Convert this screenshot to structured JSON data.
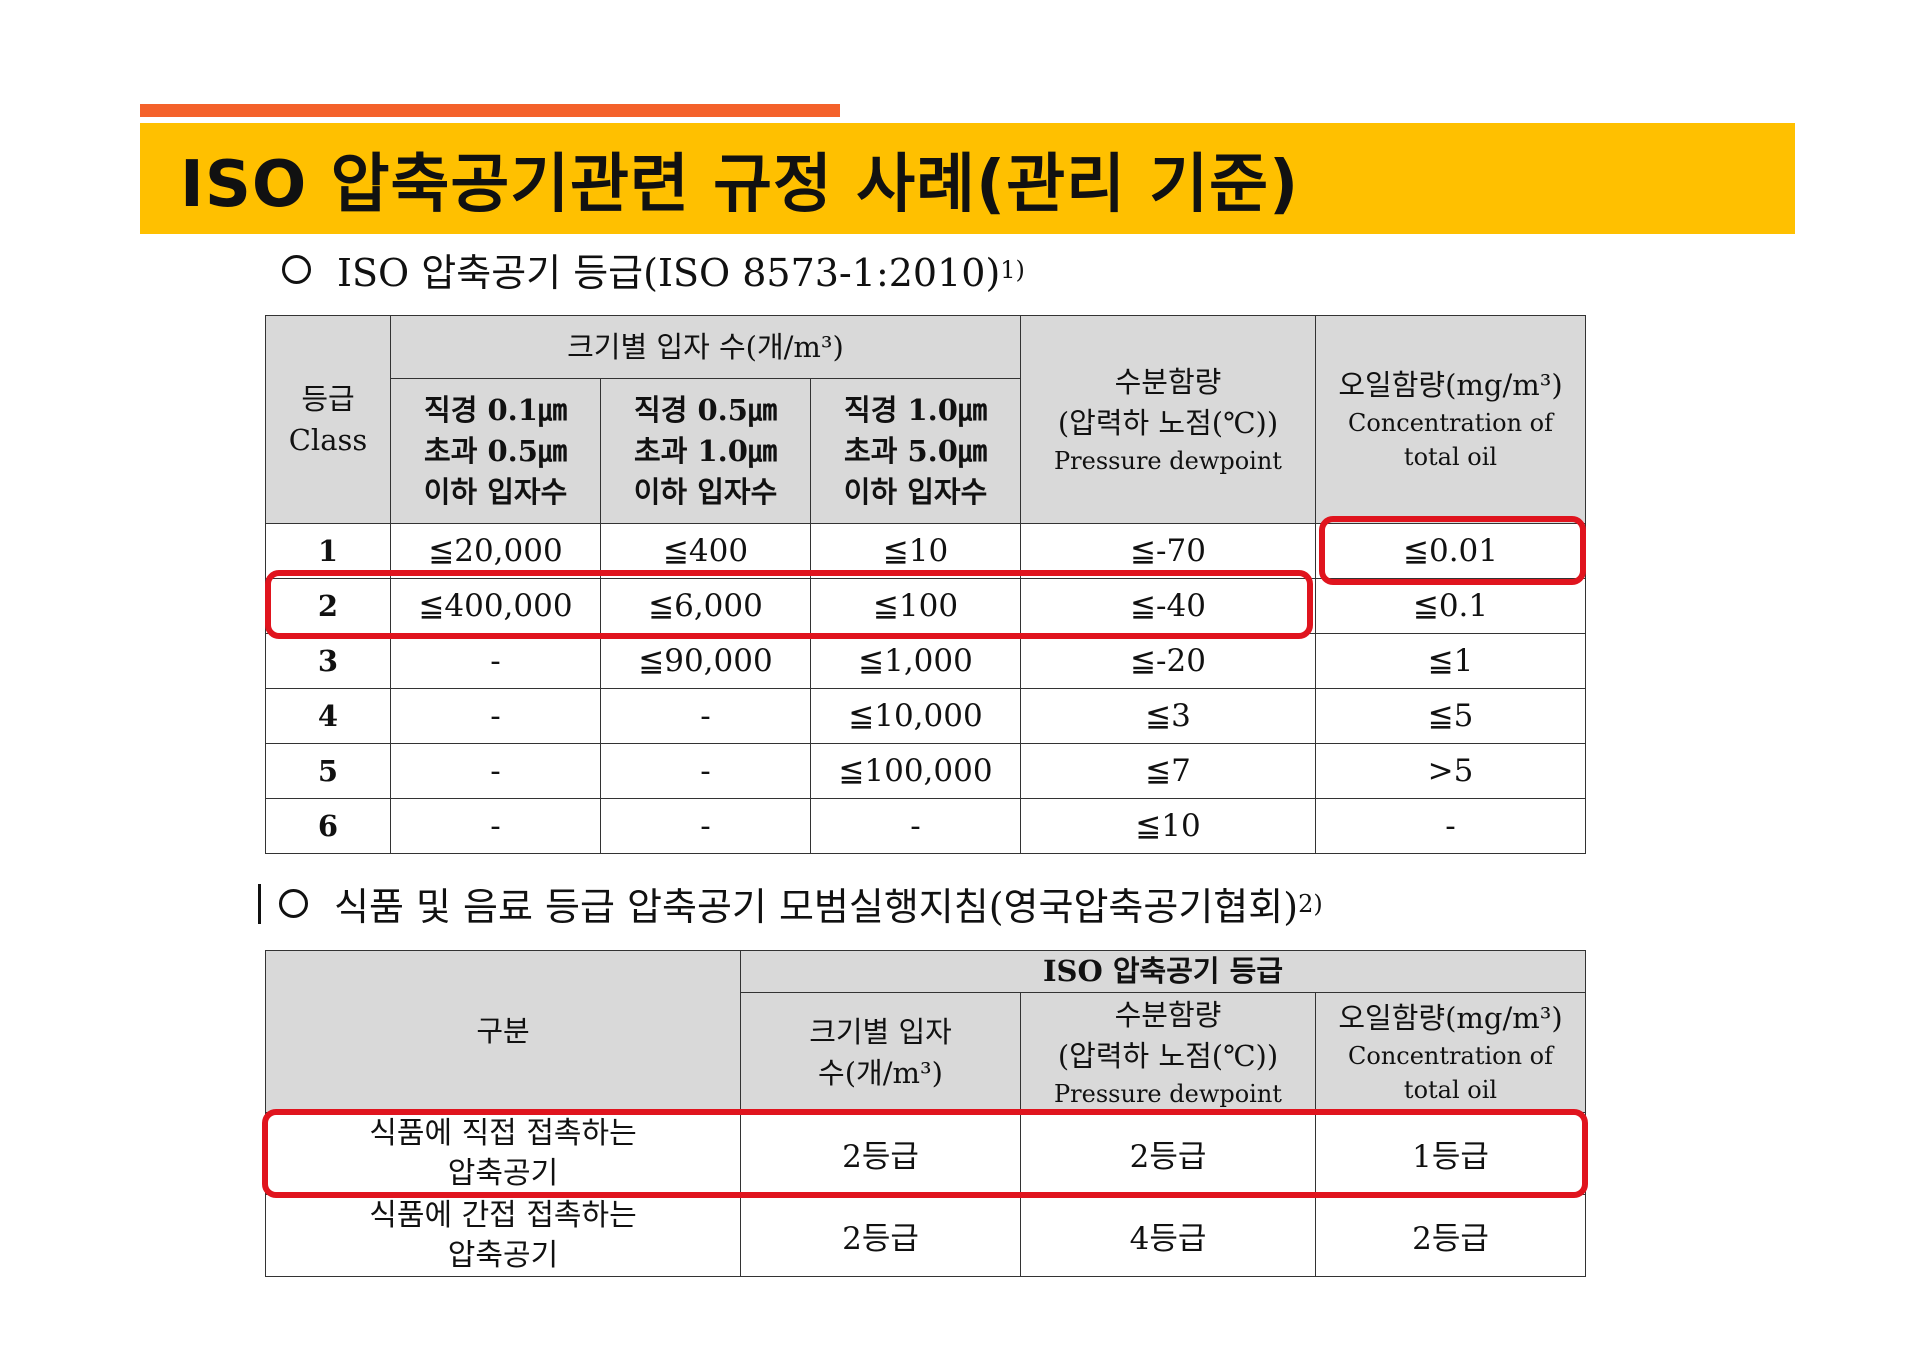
{
  "title": "ISO 압축공기관련 규정 사례(관리 기준)",
  "section1": {
    "heading": "ISO 압축공기 등급(ISO 8573-1:2010)",
    "footnote": "1)"
  },
  "table1": {
    "class_header": [
      "등급",
      "Class"
    ],
    "particle_group": "크기별 입자 수(개/m³)",
    "particle_cols": [
      [
        "직경 0.1㎛",
        "초과 0.5㎛",
        "이하 입자수"
      ],
      [
        "직경 0.5㎛",
        "초과 1.0㎛",
        "이하 입자수"
      ],
      [
        "직경 1.0㎛",
        "초과 5.0㎛",
        "이하 입자수"
      ]
    ],
    "moisture_header": [
      "수분함량",
      "(압력하 노점(℃))",
      "Pressure dewpoint"
    ],
    "oil_header": [
      "오일함량(mg/m³)",
      "Concentration of",
      "total oil"
    ],
    "rows": [
      {
        "class": "1",
        "p1": "≦20,000",
        "p2": "≦400",
        "p3": "≦10",
        "moisture": "≦-70",
        "oil": "≦0.01"
      },
      {
        "class": "2",
        "p1": "≦400,000",
        "p2": "≦6,000",
        "p3": "≦100",
        "moisture": "≦-40",
        "oil": "≦0.1"
      },
      {
        "class": "3",
        "p1": "-",
        "p2": "≦90,000",
        "p3": "≦1,000",
        "moisture": "≦-20",
        "oil": "≦1"
      },
      {
        "class": "4",
        "p1": "-",
        "p2": "-",
        "p3": "≦10,000",
        "moisture": "≦3",
        "oil": "≦5"
      },
      {
        "class": "5",
        "p1": "-",
        "p2": "-",
        "p3": "≦100,000",
        "moisture": "≦7",
        "oil": ">5"
      },
      {
        "class": "6",
        "p1": "-",
        "p2": "-",
        "p3": "-",
        "moisture": "≦10",
        "oil": "-"
      }
    ]
  },
  "section2": {
    "heading": "식품 및 음료 등급 압축공기 모범실행지침(영국압축공기협회)",
    "footnote": "2)"
  },
  "table2": {
    "category_header": "구분",
    "group_header": "ISO 압축공기 등급",
    "particle_header": [
      "크기별 입자",
      "수(개/m³)"
    ],
    "moisture_header": [
      "수분함량",
      "(압력하 노점(℃))",
      "Pressure dewpoint"
    ],
    "oil_header": [
      "오일함량(mg/m³)",
      "Concentration of",
      "total oil"
    ],
    "rows": [
      {
        "category": [
          "식품에 직접 접촉하는",
          "압축공기"
        ],
        "particle": "2등급",
        "moisture": "2등급",
        "oil": "1등급"
      },
      {
        "category": [
          "식품에 간접 접촉하는",
          "압축공기"
        ],
        "particle": "2등급",
        "moisture": "4등급",
        "oil": "2등급"
      }
    ]
  }
}
